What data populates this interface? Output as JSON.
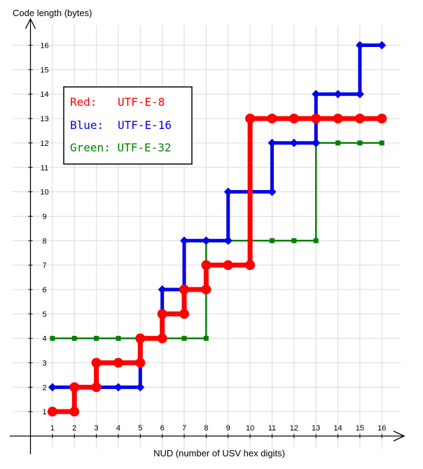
{
  "chart_data": {
    "type": "line",
    "ylabel": "Code length (bytes)",
    "xlabel": "NUD (number of USV hex digits)",
    "xlim": [
      0,
      17
    ],
    "ylim": [
      0,
      17
    ],
    "x_ticks": [
      1,
      2,
      3,
      4,
      5,
      6,
      7,
      8,
      9,
      10,
      11,
      12,
      13,
      14,
      15,
      16
    ],
    "y_ticks": [
      1,
      2,
      3,
      4,
      5,
      6,
      7,
      8,
      9,
      10,
      11,
      12,
      13,
      14,
      15,
      16
    ],
    "grid": true,
    "legend_position": "top-left",
    "legend": [
      {
        "prefix": "Red:",
        "label": "UTF-E-8",
        "color": "#ff0000"
      },
      {
        "prefix": "Blue:",
        "label": "UTF-E-16",
        "color": "#0000ee"
      },
      {
        "prefix": "Green:",
        "label": "UTF-E-32",
        "color": "#008000"
      }
    ],
    "series": [
      {
        "color": "#008000",
        "marker": "square",
        "x": [
          1,
          2,
          3,
          4,
          5,
          6,
          7,
          8,
          9,
          10,
          11,
          12,
          13,
          14,
          15,
          16
        ],
        "y": [
          4,
          4,
          4,
          4,
          4,
          4,
          4,
          8,
          8,
          8,
          8,
          8,
          12,
          12,
          12,
          12
        ]
      },
      {
        "color": "#0000ee",
        "marker": "diamond",
        "x": [
          1,
          2,
          3,
          4,
          5,
          6,
          7,
          8,
          9,
          10,
          11,
          12,
          13,
          14,
          15,
          16
        ],
        "y": [
          2,
          2,
          2,
          2,
          4,
          6,
          8,
          8,
          10,
          10,
          12,
          12,
          14,
          14,
          16,
          16
        ]
      },
      {
        "color": "#ff0000",
        "marker": "circle",
        "x": [
          1,
          2,
          3,
          4,
          5,
          6,
          7,
          8,
          9,
          10,
          11,
          12,
          13,
          14,
          15,
          16
        ],
        "y": [
          1,
          2,
          3,
          3,
          4,
          5,
          6,
          7,
          7,
          13,
          13,
          13,
          13,
          13,
          13,
          13
        ]
      }
    ]
  }
}
